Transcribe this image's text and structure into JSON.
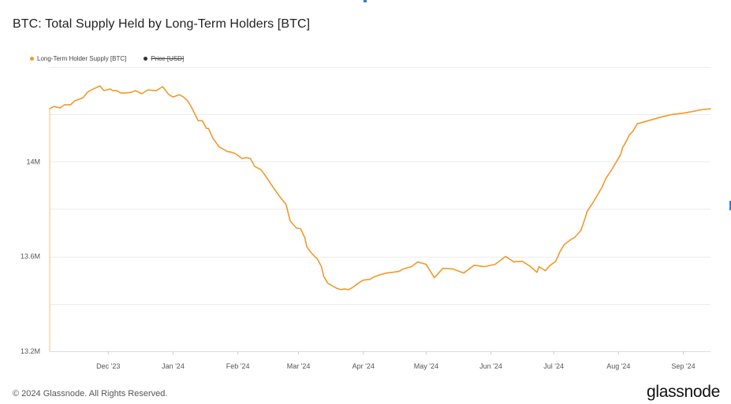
{
  "chart_data": {
    "type": "line",
    "title": "BTC: Total Supply Held by Long-Term Holders [BTC]",
    "legend": [
      {
        "name": "Long-Term Holder Supply [BTC]",
        "color": "#f09a2b",
        "active": true
      },
      {
        "name": "Price [USD]",
        "color": "#333333",
        "active": false
      }
    ],
    "xlabel": "",
    "ylabel": "",
    "x_range": [
      "2023-11-03",
      "2024-09-14"
    ],
    "ylim": [
      13.2,
      14.4
    ],
    "y_ticks": [
      {
        "value": 13.2,
        "label": "13.2M"
      },
      {
        "value": 13.6,
        "label": "13.6M"
      },
      {
        "value": 14.0,
        "label": "14M"
      }
    ],
    "y_gridlines": [
      13.4,
      13.6,
      13.8,
      14.0,
      14.2,
      14.4
    ],
    "x_ticks": [
      {
        "date": "2023-12-01",
        "label": "Dec '23"
      },
      {
        "date": "2024-01-01",
        "label": "Jan '24"
      },
      {
        "date": "2024-02-01",
        "label": "Feb '24"
      },
      {
        "date": "2024-03-01",
        "label": "Mar '24"
      },
      {
        "date": "2024-04-01",
        "label": "Apr '24"
      },
      {
        "date": "2024-05-01",
        "label": "May '24"
      },
      {
        "date": "2024-06-01",
        "label": "Jun '24"
      },
      {
        "date": "2024-07-01",
        "label": "Jul '24"
      },
      {
        "date": "2024-08-01",
        "label": "Aug '24"
      },
      {
        "date": "2024-09-01",
        "label": "Sep '24"
      }
    ],
    "grid": true,
    "legend_position": "top-left",
    "series": [
      {
        "name": "Long-Term Holder Supply [BTC]",
        "color": "#f09a2b",
        "unit": "M BTC",
        "x": [
          "2023-11-03",
          "2023-11-05",
          "2023-11-08",
          "2023-11-10",
          "2023-11-13",
          "2023-11-15",
          "2023-11-19",
          "2023-11-21",
          "2023-11-23",
          "2023-11-27",
          "2023-11-29",
          "2023-12-02",
          "2023-12-03",
          "2023-12-05",
          "2023-12-07",
          "2023-12-09",
          "2023-12-12",
          "2023-12-14",
          "2023-12-17",
          "2023-12-20",
          "2023-12-24",
          "2023-12-27",
          "2023-12-30",
          "2024-01-01",
          "2024-01-04",
          "2024-01-06",
          "2024-01-08",
          "2024-01-10",
          "2024-01-13",
          "2024-01-15",
          "2024-01-17",
          "2024-01-18",
          "2024-01-20",
          "2024-01-23",
          "2024-01-25",
          "2024-01-27",
          "2024-01-29",
          "2024-01-31",
          "2024-02-03",
          "2024-02-05",
          "2024-02-07",
          "2024-02-09",
          "2024-02-12",
          "2024-02-14",
          "2024-02-18",
          "2024-02-21",
          "2024-02-24",
          "2024-02-26",
          "2024-02-29",
          "2024-03-02",
          "2024-03-04",
          "2024-03-05",
          "2024-03-07",
          "2024-03-08",
          "2024-03-10",
          "2024-03-12",
          "2024-03-13",
          "2024-03-15",
          "2024-03-17",
          "2024-03-19",
          "2024-03-21",
          "2024-03-23",
          "2024-03-25",
          "2024-03-27",
          "2024-03-28",
          "2024-03-30",
          "2024-04-01",
          "2024-04-04",
          "2024-04-06",
          "2024-04-09",
          "2024-04-12",
          "2024-04-15",
          "2024-04-18",
          "2024-04-20",
          "2024-04-24",
          "2024-04-27",
          "2024-05-01",
          "2024-05-05",
          "2024-05-09",
          "2024-05-14",
          "2024-05-19",
          "2024-05-24",
          "2024-05-29",
          "2024-06-03",
          "2024-06-08",
          "2024-06-12",
          "2024-06-16",
          "2024-06-20",
          "2024-06-23",
          "2024-06-24",
          "2024-06-27",
          "2024-06-29",
          "2024-07-02",
          "2024-07-04",
          "2024-07-06",
          "2024-07-09",
          "2024-07-11",
          "2024-07-14",
          "2024-07-16",
          "2024-07-17",
          "2024-07-20",
          "2024-07-22",
          "2024-07-24",
          "2024-07-26",
          "2024-07-29",
          "2024-07-31",
          "2024-08-02",
          "2024-08-03",
          "2024-08-05",
          "2024-08-06",
          "2024-08-08",
          "2024-08-10",
          "2024-08-14",
          "2024-08-18",
          "2024-08-22",
          "2024-08-27",
          "2024-09-01",
          "2024-09-06",
          "2024-09-10",
          "2024-09-14"
        ],
        "values": [
          14.223,
          14.233,
          14.227,
          14.24,
          14.24,
          14.257,
          14.27,
          14.293,
          14.303,
          14.32,
          14.3,
          14.307,
          14.3,
          14.3,
          14.29,
          14.29,
          14.293,
          14.3,
          14.287,
          14.303,
          14.3,
          14.317,
          14.283,
          14.273,
          14.283,
          14.273,
          14.257,
          14.227,
          14.173,
          14.173,
          14.14,
          14.14,
          14.1,
          14.063,
          14.053,
          14.043,
          14.04,
          14.033,
          14.013,
          14.017,
          14.013,
          13.98,
          13.967,
          13.943,
          13.89,
          13.853,
          13.82,
          13.75,
          13.72,
          13.717,
          13.68,
          13.64,
          13.617,
          13.607,
          13.59,
          13.557,
          13.517,
          13.487,
          13.477,
          13.467,
          13.46,
          13.463,
          13.46,
          13.47,
          13.477,
          13.49,
          13.5,
          13.503,
          13.513,
          13.523,
          13.53,
          13.533,
          13.537,
          13.547,
          13.557,
          13.577,
          13.567,
          13.51,
          13.55,
          13.547,
          13.53,
          13.563,
          13.557,
          13.567,
          13.6,
          13.577,
          13.58,
          13.557,
          13.533,
          13.557,
          13.54,
          13.56,
          13.58,
          13.62,
          13.65,
          13.67,
          13.68,
          13.71,
          13.76,
          13.79,
          13.83,
          13.86,
          13.89,
          13.93,
          13.97,
          14.0,
          14.03,
          14.06,
          14.09,
          14.11,
          14.13,
          14.16,
          14.17,
          14.18,
          14.19,
          14.2,
          14.205,
          14.213,
          14.22,
          14.223
        ]
      }
    ]
  },
  "footer": {
    "copyright": "© 2024 Glassnode. All Rights Reserved.",
    "logo": "glassnode"
  }
}
